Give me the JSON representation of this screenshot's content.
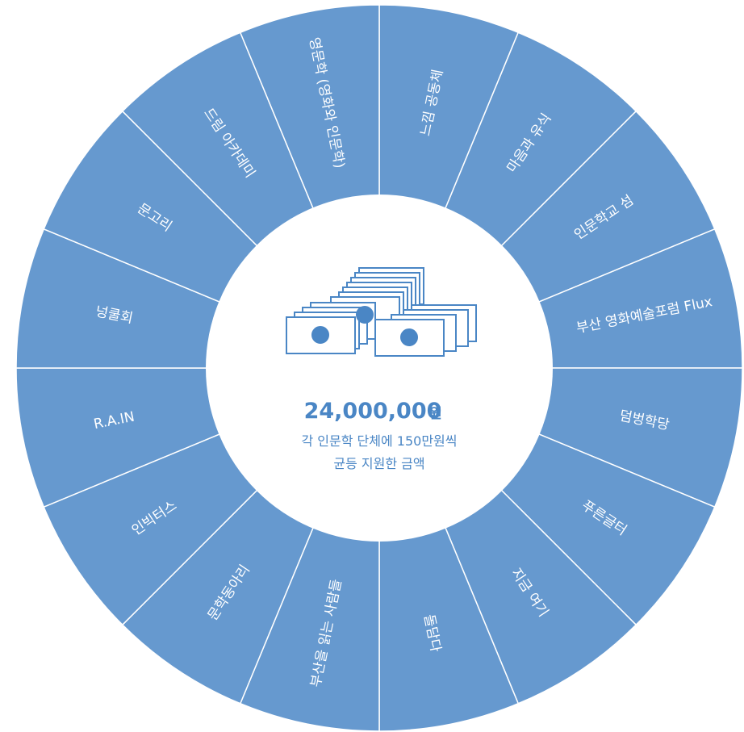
{
  "nodes": [
    {
      "label": "느낌 공동체"
    },
    {
      "label": "마음과 유식"
    },
    {
      "label": "인문학교 섬"
    },
    {
      "label": "부산 영화예술포럼 Flux"
    },
    {
      "label": "덤벙학당"
    },
    {
      "label": "푸른글터"
    },
    {
      "label": "지금 여기"
    },
    {
      "label": "돌담다"
    },
    {
      "label": "부산을 읽는 사람들"
    },
    {
      "label": "문학동아리"
    },
    {
      "label": "인빅터스"
    },
    {
      "label": "R.A.IN"
    },
    {
      "label": "넝쿨회"
    },
    {
      "label": "문고리"
    },
    {
      "label": "드림 아카데미"
    },
    {
      "label": "영문학 (영화와 인문학)"
    }
  ],
  "center": {
    "amount": "24,000,000",
    "unit": "원",
    "line1": "각 인문학 단체에 150만원씩",
    "line2": "균등 지원한 금액"
  }
}
